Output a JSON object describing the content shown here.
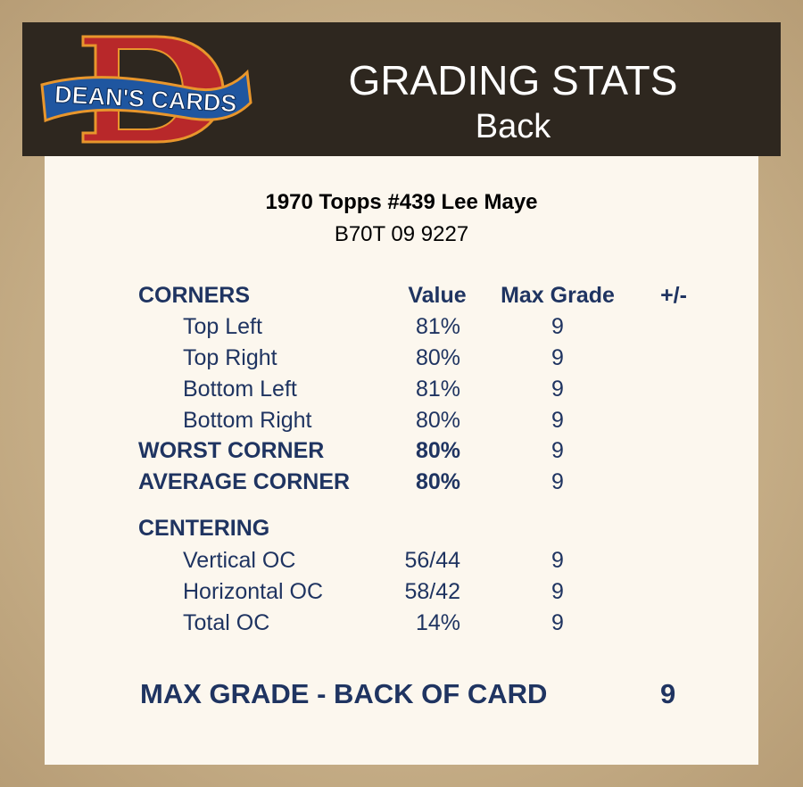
{
  "header": {
    "logo_text": "DEAN'S CARDS",
    "title": "GRADING STATS",
    "subtitle": "Back"
  },
  "card": {
    "name": "1970 Topps #439 Lee Maye",
    "cert": "B70T 09 9227"
  },
  "columns": {
    "value": "Value",
    "max_grade": "Max Grade",
    "plus_minus": "+/-"
  },
  "corners": {
    "heading": "CORNERS",
    "rows": [
      {
        "label": "Top Left",
        "value": "81%",
        "max_grade": "9"
      },
      {
        "label": "Top Right",
        "value": "80%",
        "max_grade": "9"
      },
      {
        "label": "Bottom Left",
        "value": "81%",
        "max_grade": "9"
      },
      {
        "label": "Bottom Right",
        "value": "80%",
        "max_grade": "9"
      }
    ],
    "worst": {
      "label": "WORST CORNER",
      "value": "80%",
      "max_grade": "9"
    },
    "average": {
      "label": "AVERAGE CORNER",
      "value": "80%",
      "max_grade": "9"
    }
  },
  "centering": {
    "heading": "CENTERING",
    "rows": [
      {
        "label": "Vertical OC",
        "value": "56/44",
        "max_grade": "9"
      },
      {
        "label": "Horizontal OC",
        "value": "58/42",
        "max_grade": "9"
      },
      {
        "label": "Total OC",
        "value": "14%",
        "max_grade": "9"
      }
    ]
  },
  "final": {
    "label": "MAX GRADE - BACK OF CARD",
    "value": "9"
  }
}
